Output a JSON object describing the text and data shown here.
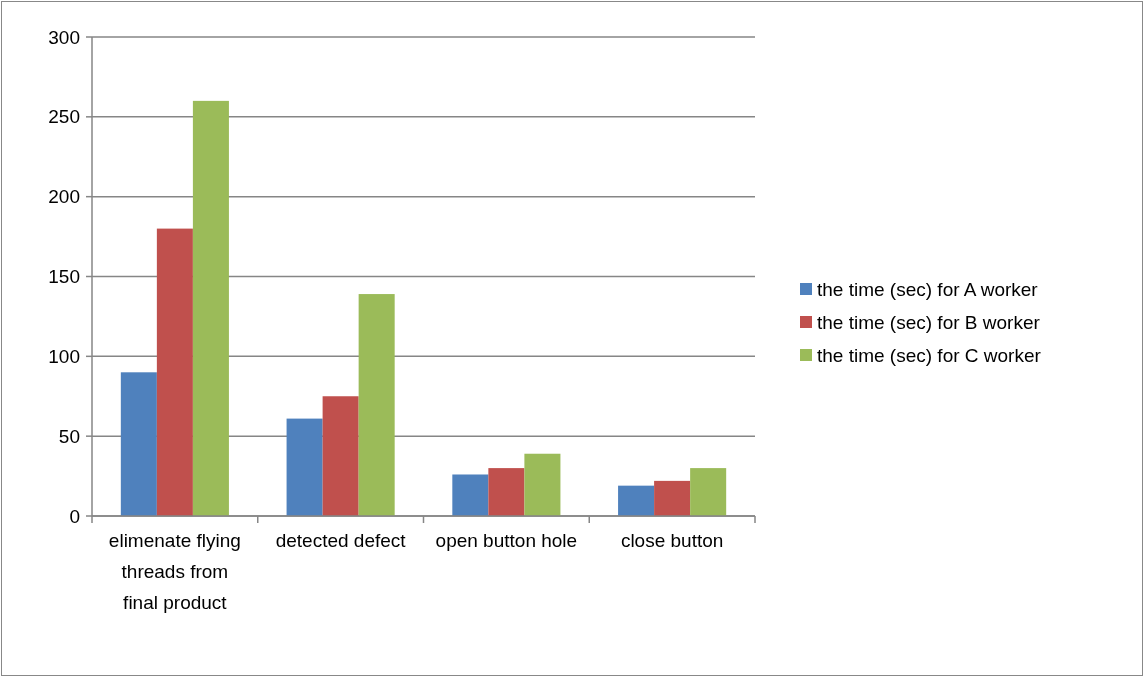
{
  "chart_data": {
    "type": "bar",
    "categories": [
      "elimenate flying threads from final product",
      "detected defect",
      "open button hole",
      "close button"
    ],
    "series": [
      {
        "name": "the time (sec) for A worker",
        "color": "#4f81bd",
        "values": [
          90,
          61,
          26,
          19
        ]
      },
      {
        "name": "the time (sec) for B worker",
        "color": "#c0504d",
        "values": [
          180,
          75,
          30,
          22
        ]
      },
      {
        "name": "the time (sec) for C worker",
        "color": "#9bbb59",
        "values": [
          260,
          139,
          39,
          30
        ]
      }
    ],
    "ylim": [
      0,
      300
    ],
    "yticks": [
      0,
      50,
      100,
      150,
      200,
      250,
      300
    ],
    "grid": "y",
    "legend": "right"
  }
}
